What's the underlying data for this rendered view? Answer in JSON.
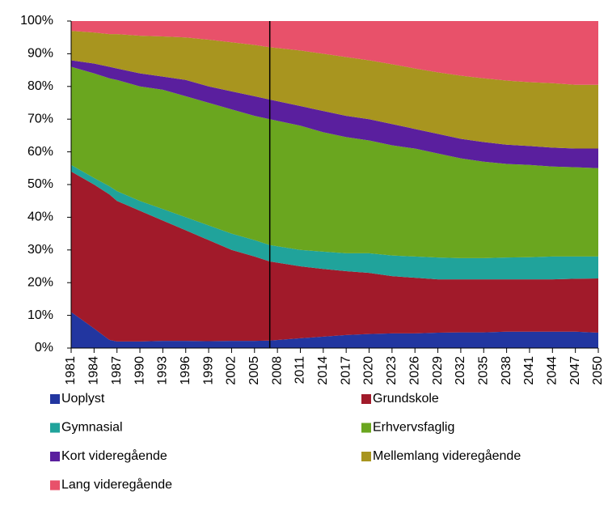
{
  "chart_data": {
    "type": "stacked_area",
    "x": [
      1981,
      1984,
      1986,
      1987,
      1990,
      1993,
      1996,
      1999,
      2002,
      2005,
      2007,
      2011,
      2014,
      2017,
      2020,
      2023,
      2026,
      2029,
      2032,
      2035,
      2038,
      2041,
      2044,
      2047,
      2050
    ],
    "series": [
      {
        "name": "Uoplyst",
        "color": "#2236a0",
        "values": [
          11,
          6,
          2.5,
          2,
          2,
          2.2,
          2.2,
          2.1,
          2.2,
          2.2,
          2.3,
          3,
          3.5,
          4,
          4.3,
          4.5,
          4.5,
          4.7,
          4.8,
          4.8,
          5,
          5,
          5,
          5,
          4.7
        ]
      },
      {
        "name": "Grundskole",
        "color": "#a11a2a",
        "values": [
          43,
          44,
          44.5,
          43,
          40,
          36.8,
          33.8,
          30.9,
          27.8,
          25.8,
          24.2,
          22,
          20.7,
          19.5,
          18.7,
          17.5,
          17,
          16.3,
          16.2,
          16.2,
          16,
          16,
          16,
          16.2,
          16.6
        ]
      },
      {
        "name": "Gymnasial",
        "color": "#20a39b",
        "values": [
          2,
          2,
          2.5,
          3,
          3,
          3.5,
          4,
          4.5,
          5,
          5,
          5,
          5,
          5.3,
          5.5,
          6,
          6.3,
          6.5,
          6.7,
          6.5,
          6.5,
          6.7,
          6.8,
          7,
          6.8,
          6.7
        ]
      },
      {
        "name": "Erhvervsfaglig",
        "color": "#6aa61f",
        "values": [
          30,
          32,
          33,
          34,
          35,
          36.5,
          37,
          37.5,
          38,
          38,
          38.5,
          38,
          36.5,
          35.5,
          34.5,
          33.7,
          33,
          31.8,
          30.5,
          29.5,
          28.6,
          28.2,
          27.5,
          27.3,
          27
        ]
      },
      {
        "name": "Kort videregående",
        "color": "#5a1f9e",
        "values": [
          2,
          3,
          3.5,
          3.5,
          4,
          4,
          5,
          5,
          5.5,
          6,
          6,
          6,
          6.5,
          6.5,
          6.5,
          6.5,
          6,
          6,
          6,
          6,
          5.9,
          5.8,
          5.8,
          5.7,
          6
        ]
      },
      {
        "name": "Mellemlang videregående",
        "color": "#a8951f",
        "values": [
          9,
          9.5,
          10,
          10.5,
          11.5,
          12.3,
          13,
          14.3,
          15,
          15.7,
          16,
          17,
          17.5,
          18,
          18,
          18.3,
          18.5,
          18.8,
          19.3,
          19.5,
          19.6,
          19.5,
          19.7,
          19.5,
          19.5
        ]
      },
      {
        "name": "Lang videregående",
        "color": "#e8516a",
        "values": [
          3,
          3.5,
          4,
          4,
          4.5,
          4.7,
          5,
          5.7,
          6.5,
          7.3,
          8,
          9,
          10,
          11,
          12,
          13.2,
          14.5,
          15.7,
          16.7,
          17.5,
          18.2,
          18.7,
          19,
          19.5,
          19.5
        ]
      }
    ],
    "xlim": [
      1981,
      2050
    ],
    "xticks": [
      1981,
      1984,
      1987,
      1990,
      1993,
      1996,
      1999,
      2002,
      2005,
      2008,
      2011,
      2014,
      2017,
      2020,
      2023,
      2026,
      2029,
      2032,
      2035,
      2038,
      2041,
      2044,
      2047,
      2050
    ],
    "ylim": [
      0,
      100
    ],
    "yticks": [
      {
        "value": 0,
        "label": "0%"
      },
      {
        "value": 10,
        "label": "10%"
      },
      {
        "value": 20,
        "label": "20%"
      },
      {
        "value": 30,
        "label": "30%"
      },
      {
        "value": 40,
        "label": "40%"
      },
      {
        "value": 50,
        "label": "50%"
      },
      {
        "value": 60,
        "label": "60%"
      },
      {
        "value": 70,
        "label": "70%"
      },
      {
        "value": 80,
        "label": "80%"
      },
      {
        "value": 90,
        "label": "90%"
      },
      {
        "value": 100,
        "label": "100%"
      }
    ],
    "vline": 2007
  }
}
